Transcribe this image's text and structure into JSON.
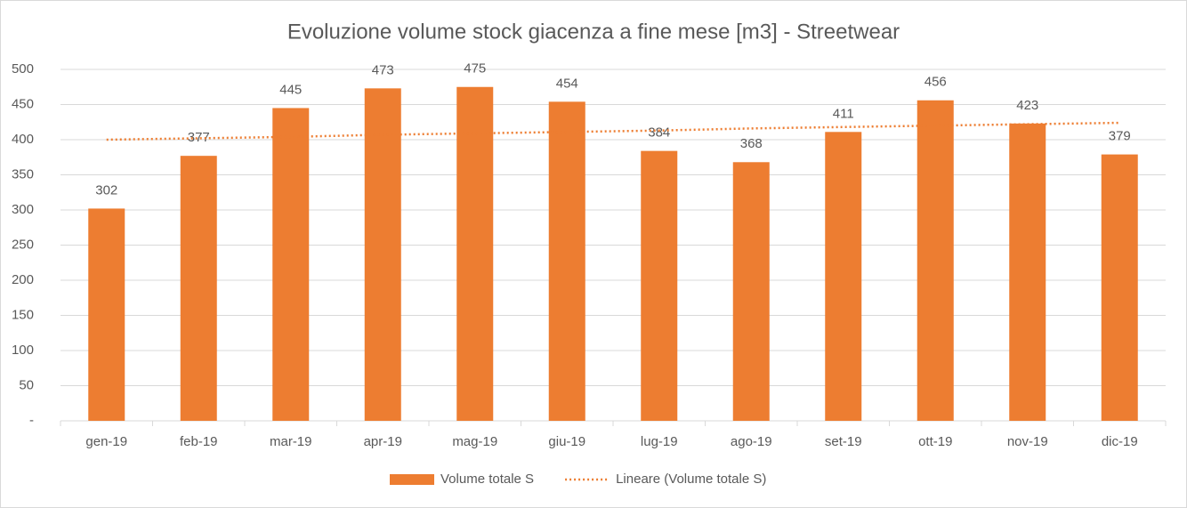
{
  "chart_data": {
    "type": "bar",
    "title": "Evoluzione volume stock giacenza a fine mese [m3] - Streetwear",
    "categories": [
      "gen-19",
      "feb-19",
      "mar-19",
      "apr-19",
      "mag-19",
      "giu-19",
      "lug-19",
      "ago-19",
      "set-19",
      "ott-19",
      "nov-19",
      "dic-19"
    ],
    "series": [
      {
        "name": "Volume totale S",
        "color": "#ed7d31",
        "values": [
          302,
          377,
          445,
          473,
          475,
          454,
          384,
          368,
          411,
          456,
          423,
          379
        ]
      },
      {
        "name": "Lineare (Volume totale S)",
        "type": "trendline",
        "color": "#ed7d31",
        "values": [
          400,
          402,
          404,
          407,
          409,
          411,
          413,
          416,
          418,
          420,
          422,
          424
        ]
      }
    ],
    "ylim": [
      0,
      500
    ],
    "yticks": [
      {
        "value": 0,
        "label": "-"
      },
      50,
      100,
      150,
      200,
      250,
      300,
      350,
      400,
      450,
      500
    ],
    "grid": true,
    "legend": "bottom"
  }
}
